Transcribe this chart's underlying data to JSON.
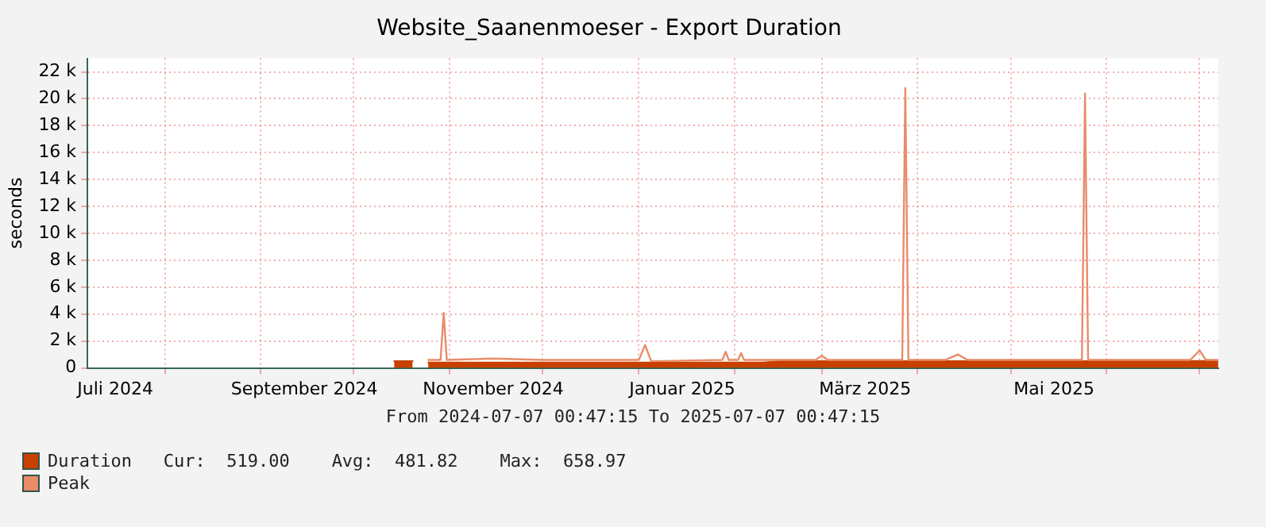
{
  "chart_data": {
    "type": "area",
    "title": "Website_Saanenmoeser - Export Duration",
    "ylabel": "seconds",
    "xlim": [
      "2024-07-07T00:47",
      "2025-07-07T00:47"
    ],
    "xticks": [
      {
        "value": "2024-07-16",
        "label": "Juli 2024"
      },
      {
        "value": "2024-08-01",
        "label": null
      },
      {
        "value": "2024-09-01",
        "label": null
      },
      {
        "value": "2024-09-15",
        "label": "September 2024"
      },
      {
        "value": "2024-10-01",
        "label": null
      },
      {
        "value": "2024-11-01",
        "label": null
      },
      {
        "value": "2024-11-15",
        "label": "November 2024"
      },
      {
        "value": "2024-12-01",
        "label": null
      },
      {
        "value": "2025-01-01",
        "label": null
      },
      {
        "value": "2025-01-15",
        "label": "Januar 2025"
      },
      {
        "value": "2025-02-01",
        "label": null
      },
      {
        "value": "2025-03-01",
        "label": null
      },
      {
        "value": "2025-03-15",
        "label": "März 2025"
      },
      {
        "value": "2025-04-01",
        "label": null
      },
      {
        "value": "2025-05-01",
        "label": null
      },
      {
        "value": "2025-05-15",
        "label": "Mai 2025"
      },
      {
        "value": "2025-06-01",
        "label": null
      },
      {
        "value": "2025-07-01",
        "label": null
      }
    ],
    "ylim": [
      0,
      23000
    ],
    "yticks": [
      0,
      {
        "value": 2000,
        "label": "2 k"
      },
      {
        "value": 4000,
        "label": "4 k"
      },
      {
        "value": 6000,
        "label": "6 k"
      },
      {
        "value": 8000,
        "label": "8 k"
      },
      {
        "value": 10000,
        "label": "10 k"
      },
      {
        "value": 12000,
        "label": "12 k"
      },
      {
        "value": 14000,
        "label": "14 k"
      },
      {
        "value": 16000,
        "label": "16 k"
      },
      {
        "value": 18000,
        "label": "18 k"
      },
      {
        "value": 20000,
        "label": "20 k"
      },
      {
        "value": 22000,
        "label": "22 k"
      }
    ],
    "grid": true,
    "legend": "bottom left",
    "annotations": [
      "From 2024-07-07 00:47:15 To 2025-07-07 00:47:15",
      "Cur:  519.00    Avg:  481.82    Max:  658.97"
    ],
    "series": [
      {
        "name": "Duration",
        "color": "#c84000",
        "x": [
          "2024-10-14",
          "2024-10-17",
          "2024-10-20",
          "2024-10-21",
          "2024-10-25",
          "2024-11-20",
          "2024-12-20",
          "2025-01-20",
          "2025-02-10",
          "2025-02-15",
          "2025-03-15",
          "2025-04-15",
          "2025-05-15",
          "2025-06-15",
          "2025-07-07"
        ],
        "values": [
          500,
          500,
          500,
          null,
          400,
          400,
          400,
          400,
          400,
          500,
          500,
          500,
          500,
          500,
          519
        ]
      },
      {
        "name": "Peak",
        "type": "line",
        "color": "#e88c6a",
        "x": [
          "2024-10-25",
          "2024-10-29",
          "2024-10-30",
          "2024-10-31",
          "2024-11-15",
          "2024-12-01",
          "2025-01-01",
          "2025-01-03",
          "2025-01-05",
          "2025-01-28",
          "2025-01-29",
          "2025-01-30",
          "2025-02-02",
          "2025-02-03",
          "2025-02-04",
          "2025-02-27",
          "2025-03-01",
          "2025-03-03",
          "2025-03-27",
          "2025-03-28",
          "2025-03-29",
          "2025-04-10",
          "2025-04-14",
          "2025-04-17",
          "2025-05-24",
          "2025-05-25",
          "2025-05-26",
          "2025-06-28",
          "2025-07-01",
          "2025-07-03",
          "2025-07-07"
        ],
        "values": [
          600,
          600,
          4100,
          600,
          700,
          600,
          600,
          1700,
          500,
          600,
          1200,
          600,
          600,
          1100,
          600,
          600,
          900,
          600,
          600,
          20800,
          600,
          600,
          1000,
          600,
          600,
          20400,
          600,
          600,
          1300,
          600,
          600
        ]
      }
    ]
  }
}
